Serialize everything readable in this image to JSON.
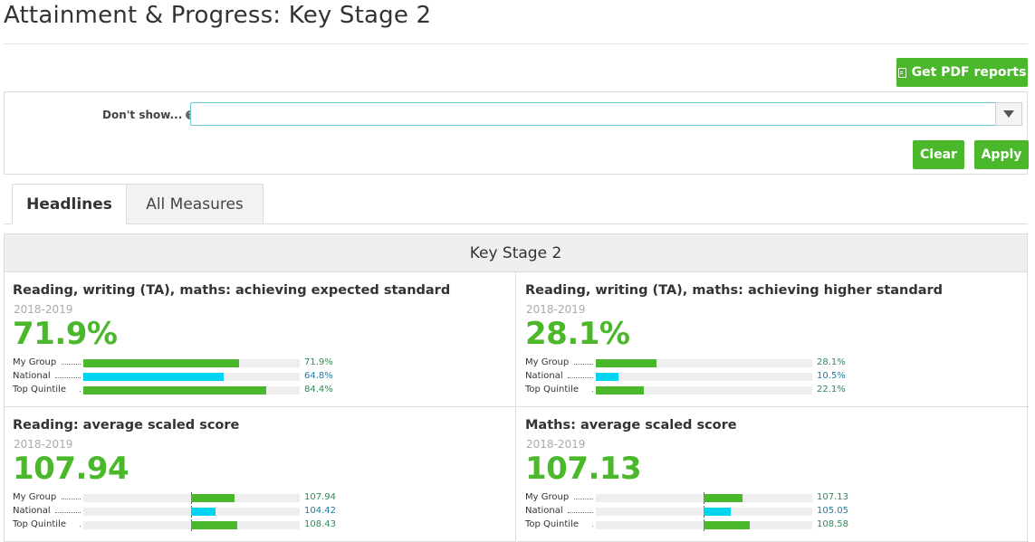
{
  "page": {
    "title": "Attainment & Progress: Key Stage 2"
  },
  "toolbar": {
    "pdf_label": "Get PDF reports"
  },
  "filter": {
    "label": "Don't show...",
    "input_value": "",
    "clear_label": "Clear",
    "apply_label": "Apply"
  },
  "tabs": [
    {
      "label": "Headlines",
      "active": true
    },
    {
      "label": "All Measures",
      "active": false
    }
  ],
  "section": {
    "title": "Key Stage 2"
  },
  "colors": {
    "accent": "#4bb72b",
    "national": "#00d4f0",
    "track": "#eeeeee"
  },
  "cards": [
    {
      "title": "Reading, writing (TA), maths: achieving expected standard",
      "year": "2018-2019",
      "value": "71.9%",
      "scale": "percent",
      "rows": [
        {
          "label": "My Group",
          "value": 71.9,
          "display": "71.9%",
          "color": "#4bb72b"
        },
        {
          "label": "National",
          "value": 64.8,
          "display": "64.8%",
          "color": "#00d4f0"
        },
        {
          "label": "Top Quintile",
          "value": 84.4,
          "display": "84.4%",
          "color": "#4bb72b"
        }
      ]
    },
    {
      "title": "Reading, writing (TA), maths: achieving higher standard",
      "year": "2018-2019",
      "value": "28.1%",
      "scale": "percent",
      "rows": [
        {
          "label": "My Group",
          "value": 28.1,
          "display": "28.1%",
          "color": "#4bb72b"
        },
        {
          "label": "National",
          "value": 10.5,
          "display": "10.5%",
          "color": "#00d4f0"
        },
        {
          "label": "Top Quintile",
          "value": 22.1,
          "display": "22.1%",
          "color": "#4bb72b"
        }
      ]
    },
    {
      "title": "Reading: average scaled score",
      "year": "2018-2019",
      "value": "107.94",
      "scale": "score",
      "rows": [
        {
          "label": "My Group",
          "value": 107.94,
          "display": "107.94",
          "color": "#4bb72b"
        },
        {
          "label": "National",
          "value": 104.42,
          "display": "104.42",
          "color": "#00d4f0"
        },
        {
          "label": "Top Quintile",
          "value": 108.43,
          "display": "108.43",
          "color": "#4bb72b"
        }
      ]
    },
    {
      "title": "Maths: average scaled score",
      "year": "2018-2019",
      "value": "107.13",
      "scale": "score",
      "rows": [
        {
          "label": "My Group",
          "value": 107.13,
          "display": "107.13",
          "color": "#4bb72b"
        },
        {
          "label": "National",
          "value": 105.05,
          "display": "105.05",
          "color": "#00d4f0"
        },
        {
          "label": "Top Quintile",
          "value": 108.58,
          "display": "108.58",
          "color": "#4bb72b"
        }
      ]
    }
  ]
}
